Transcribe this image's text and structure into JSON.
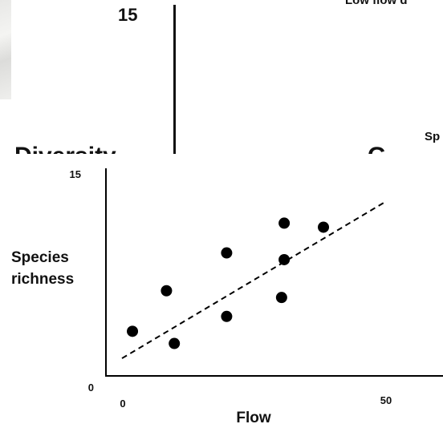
{
  "top_fragment": {
    "tick_label": "15",
    "heading": "Low flow d",
    "side_label": "Sp",
    "cut_text_left": "Diversity",
    "cut_text_right": "G"
  },
  "chart_data": {
    "type": "scatter",
    "xlabel": "Flow",
    "ylabel": "Species richness",
    "ylabel_lines": [
      "Species",
      "richness"
    ],
    "xlim": [
      0,
      50
    ],
    "ylim": [
      0,
      15
    ],
    "x_ticks": [
      "0",
      "50"
    ],
    "y_ticks": [
      "0",
      "15"
    ],
    "series": [
      {
        "points": [
          {
            "x": 2,
            "y": 3.3
          },
          {
            "x": 8.5,
            "y": 6.3
          },
          {
            "x": 10,
            "y": 2.4
          },
          {
            "x": 20,
            "y": 9.1
          },
          {
            "x": 20,
            "y": 4.4
          },
          {
            "x": 30.5,
            "y": 5.8
          },
          {
            "x": 31,
            "y": 8.6
          },
          {
            "x": 31,
            "y": 11.3
          },
          {
            "x": 38.5,
            "y": 11
          }
        ]
      }
    ],
    "trendline": {
      "style": "dashed",
      "x": [
        0,
        50
      ],
      "y": [
        1.3,
        12.8
      ]
    },
    "grid": false,
    "legend": "none",
    "colors": {
      "points": "#000000",
      "axes": "#000000"
    }
  }
}
